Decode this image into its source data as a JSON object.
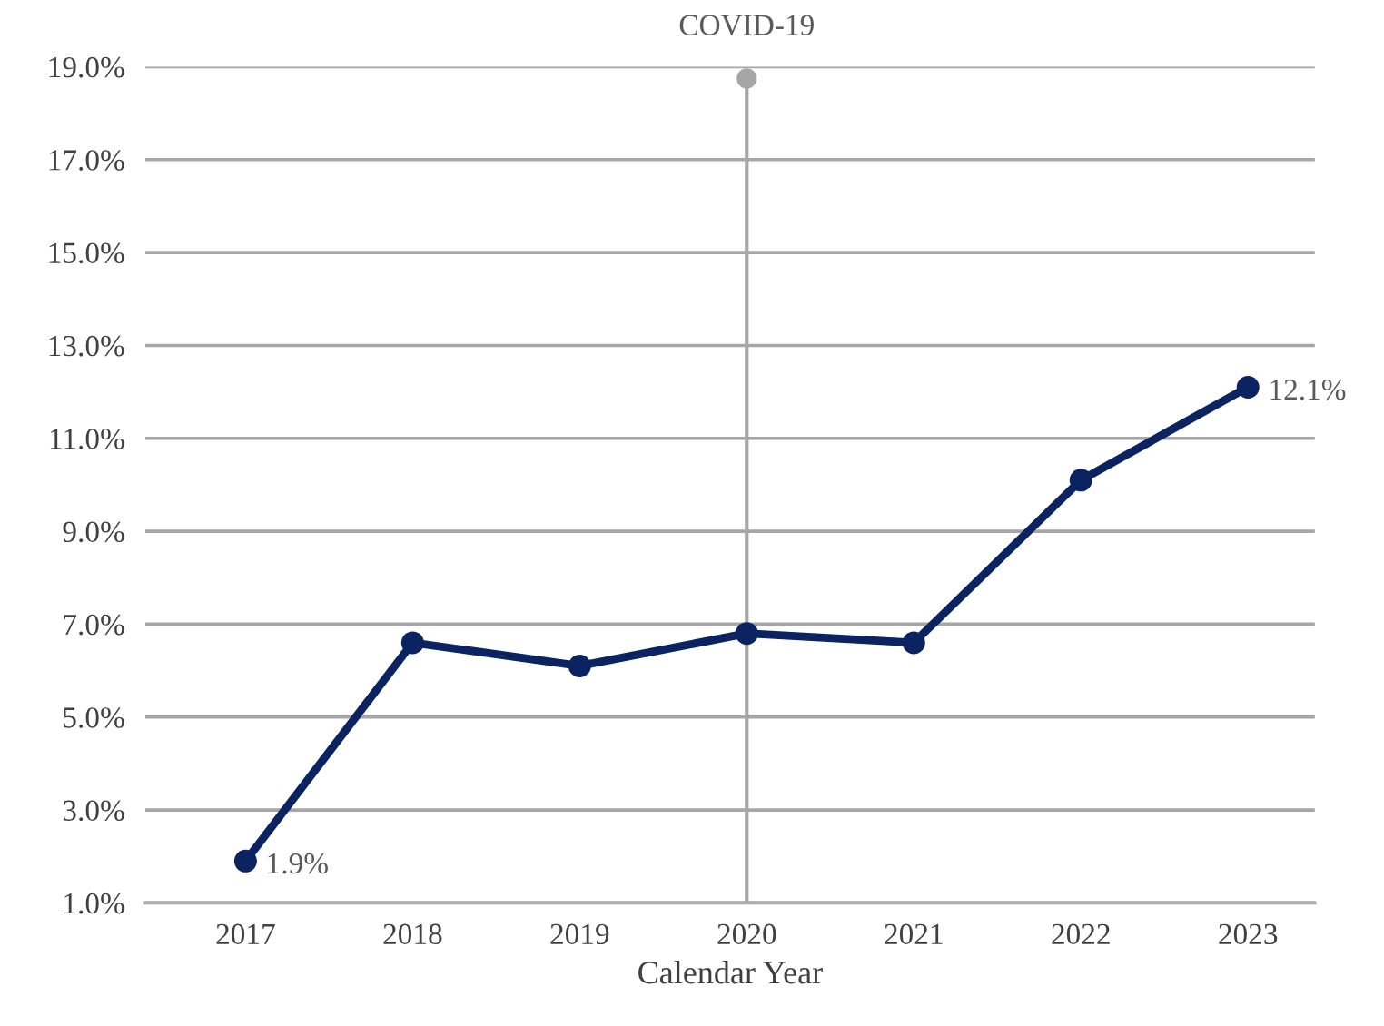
{
  "chart_data": {
    "type": "line",
    "xlabel": "Calendar Year",
    "categories": [
      "2017",
      "2018",
      "2019",
      "2020",
      "2021",
      "2022",
      "2023"
    ],
    "series": [
      {
        "color": "#0b2461",
        "values": [
          1.9,
          6.6,
          6.1,
          6.8,
          6.6,
          10.1,
          12.1
        ],
        "value_labels": [
          "1.9%",
          null,
          null,
          null,
          null,
          null,
          "12.1%"
        ]
      }
    ],
    "ylim": [
      1.0,
      19.0
    ],
    "yticks": [
      {
        "value": 1,
        "label": "1.0%"
      },
      {
        "value": 3,
        "label": "3.0%"
      },
      {
        "value": 5,
        "label": "5.0%"
      },
      {
        "value": 7,
        "label": "7.0%"
      },
      {
        "value": 9,
        "label": "9.0%"
      },
      {
        "value": 11,
        "label": "11.0%"
      },
      {
        "value": 13,
        "label": "13.0%"
      },
      {
        "value": 15,
        "label": "15.0%"
      },
      {
        "value": 17,
        "label": "17.0%"
      },
      {
        "value": 19,
        "label": "19.0%"
      }
    ],
    "ref_lines": [
      {
        "axis": "x",
        "value": "2020",
        "label": "COVID-19",
        "color": "#a6a6a6"
      }
    ],
    "grid": "y",
    "marker": "circle",
    "line_style": "solid"
  }
}
